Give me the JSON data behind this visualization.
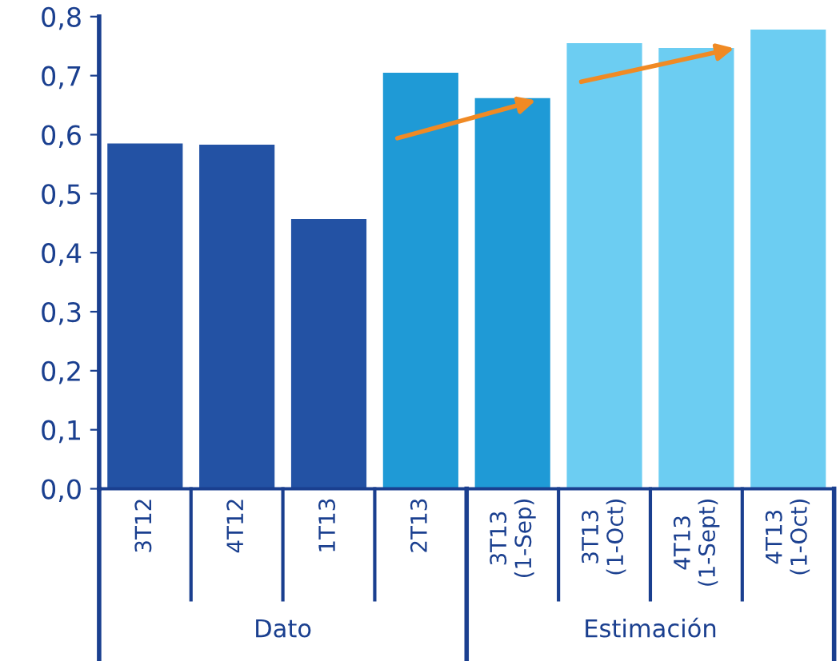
{
  "chart_data": {
    "type": "bar",
    "categories": [
      "3T12",
      "4T12",
      "1T13",
      "2T13",
      "3T13\n(1-Sep)",
      "3T13\n(1-Oct)",
      "4T13\n(1-Sept)",
      "4T13\n(1-Oct)"
    ],
    "values": [
      0.585,
      0.583,
      0.457,
      0.705,
      0.662,
      0.755,
      0.747,
      0.778
    ],
    "colors": [
      "#2352a4",
      "#2352a4",
      "#2352a4",
      "#1f9ad6",
      "#1f9ad6",
      "#6ccdf2",
      "#6ccdf2",
      "#6ccdf2"
    ],
    "ylim": [
      0,
      0.8
    ],
    "yticks": [
      {
        "value": 0,
        "label": "0,0"
      },
      {
        "value": 0.1,
        "label": "0,1"
      },
      {
        "value": 0.2,
        "label": "0,2"
      },
      {
        "value": 0.3,
        "label": "0,3"
      },
      {
        "value": 0.4,
        "label": "0,4"
      },
      {
        "value": 0.5,
        "label": "0,5"
      },
      {
        "value": 0.6,
        "label": "0,6"
      },
      {
        "value": 0.7,
        "label": "0,7"
      },
      {
        "value": 0.8,
        "label": "0,8"
      }
    ],
    "annotations": [
      "Dato",
      "Estimación"
    ],
    "grid": false,
    "legend": false
  }
}
